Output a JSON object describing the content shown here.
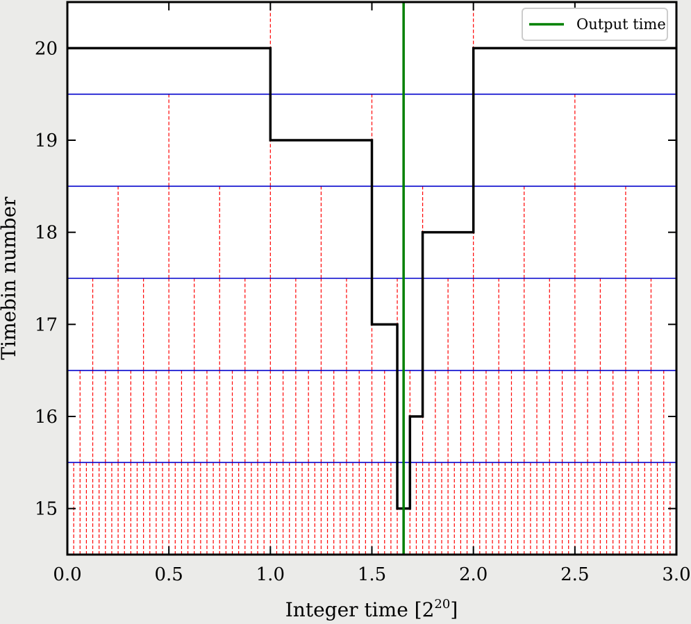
{
  "chart_data": {
    "type": "line",
    "title": "",
    "xlabel": "Integer time [2",
    "xlabel_exponent": "20",
    "xlabel_suffix": "]",
    "ylabel": "Timebin number",
    "xlim": [
      0.0,
      3.0
    ],
    "ylim": [
      14.5,
      20.5
    ],
    "x_ticks": [
      0.0,
      0.5,
      1.0,
      1.5,
      2.0,
      2.5,
      3.0
    ],
    "x_tick_labels": [
      "0.0",
      "0.5",
      "1.0",
      "1.5",
      "2.0",
      "2.5",
      "3.0"
    ],
    "y_ticks": [
      15,
      16,
      17,
      18,
      19,
      20
    ],
    "y_tick_labels": [
      "15",
      "16",
      "17",
      "18",
      "19",
      "20"
    ],
    "grid": false,
    "legend_position": "top-right",
    "series": [
      {
        "style": "step",
        "color": "#000000",
        "x": [
          0.0,
          1.0,
          1.0,
          1.5,
          1.5,
          1.625,
          1.625,
          1.6875,
          1.6875,
          1.75,
          1.75,
          2.0,
          2.0,
          3.0
        ],
        "y": [
          20,
          20,
          19,
          19,
          17,
          17,
          15,
          15,
          16,
          16,
          18,
          18,
          20,
          20
        ]
      },
      {
        "name": "Output time",
        "style": "vline",
        "color": "#008000",
        "x": 1.6562
      }
    ],
    "bin_boundaries": {
      "color_boundary": "#0000cc",
      "color_ticks": "#ff0000",
      "levels": [
        {
          "bin": 20,
          "range": [
            19.5,
            20.5
          ],
          "spacing": 1.0
        },
        {
          "bin": 19,
          "range": [
            18.5,
            19.5
          ],
          "spacing": 0.5
        },
        {
          "bin": 18,
          "range": [
            17.5,
            18.5
          ],
          "spacing": 0.25
        },
        {
          "bin": 17,
          "range": [
            16.5,
            17.5
          ],
          "spacing": 0.125
        },
        {
          "bin": 16,
          "range": [
            15.5,
            16.5
          ],
          "spacing": 0.0625
        },
        {
          "bin": 15,
          "range": [
            14.5,
            15.5
          ],
          "spacing": 0.03125
        }
      ]
    }
  }
}
